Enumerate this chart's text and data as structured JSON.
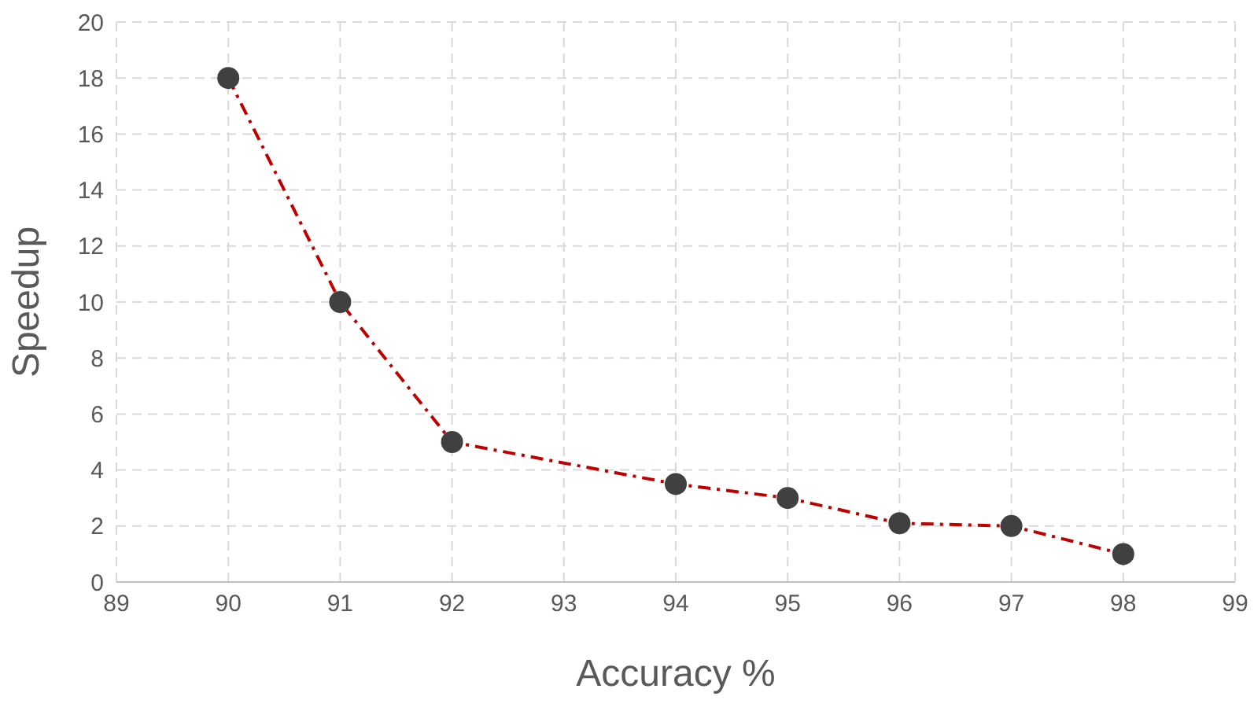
{
  "chart_data": {
    "type": "line",
    "xlabel": "Accuracy %",
    "ylabel": "Speedup",
    "x": [
      90,
      91,
      92,
      94,
      95,
      96,
      97,
      98
    ],
    "series": [
      {
        "color": "#c00000",
        "line_style": "dashed",
        "marker": "none",
        "values": [
          18,
          10,
          5,
          3.5,
          3,
          2.1,
          2,
          1
        ]
      },
      {
        "type": "scatter",
        "color": "#404040",
        "marker": "circle",
        "values": [
          18,
          10,
          5,
          3.5,
          3,
          2.1,
          2,
          1
        ]
      }
    ],
    "xlim": [
      89,
      99
    ],
    "xticks": [
      89,
      90,
      91,
      92,
      93,
      94,
      95,
      96,
      97,
      98,
      99
    ],
    "ylim": [
      0,
      20
    ],
    "yticks": [
      0,
      2,
      4,
      6,
      8,
      10,
      12,
      14,
      16,
      18,
      20
    ],
    "grid": true
  }
}
